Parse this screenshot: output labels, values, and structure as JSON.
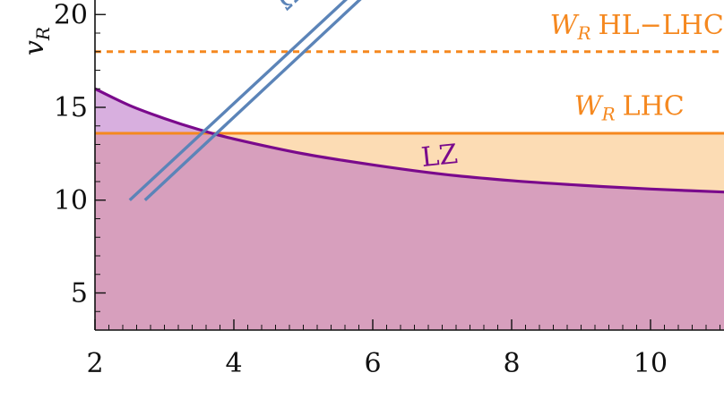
{
  "chart_data": {
    "type": "line",
    "title": "",
    "ylabel": "v",
    "ylabel_sub": "R",
    "xlabel": "",
    "xlim": [
      2,
      11.3
    ],
    "ylim": [
      3,
      20.5
    ],
    "x_ticks": [
      2,
      4,
      6,
      8,
      10
    ],
    "y_ticks": [
      5,
      10,
      15,
      20
    ],
    "series": [
      {
        "name": "LZ",
        "color": "#7a0a8c",
        "style": "solid",
        "x": [
          2,
          2.5,
          3,
          3.5,
          4,
          5,
          6,
          7,
          8,
          9,
          10,
          11.3
        ],
        "y": [
          16.0,
          15.1,
          14.4,
          13.8,
          13.3,
          12.5,
          11.9,
          11.4,
          11.05,
          10.8,
          10.6,
          10.4
        ]
      },
      {
        "name": "W_R LHC",
        "label": "LHC",
        "color": "#f5881f",
        "style": "solid",
        "x": [
          2,
          11.3
        ],
        "y": [
          13.6,
          13.6
        ]
      },
      {
        "name": "W_R HL-LHC",
        "label": "HL−LHC",
        "color": "#f5881f",
        "style": "dashed",
        "x": [
          2,
          11.3
        ],
        "y": [
          18.0,
          18.0
        ]
      },
      {
        "name": "Omega h^2 (a)",
        "label": "Ωh",
        "color": "#5b84b8",
        "style": "double",
        "x": [
          2.5,
          5.9
        ],
        "y": [
          10.0,
          21.8
        ]
      },
      {
        "name": "Omega h^2 (b)",
        "color": "#5b84b8",
        "style": "double",
        "x": [
          2.72,
          6.1
        ],
        "y": [
          10.0,
          21.8
        ]
      }
    ],
    "fills": [
      {
        "name": "LZ excluded",
        "color": "#b86ec4",
        "opacity": 0.55
      },
      {
        "name": "W_R LHC excluded",
        "color": "#fbc98c",
        "opacity": 0.65
      }
    ],
    "annotations": [
      {
        "text": "LZ",
        "x": 7.0,
        "y": 12.4,
        "color": "#7a0a8c"
      },
      {
        "text": "W",
        "sub": "R",
        "rest": "LHC",
        "x": 8.9,
        "y": 14.6,
        "color": "#f5881f"
      },
      {
        "text": "W",
        "sub": "R",
        "rest": "HL−LHC",
        "x": 8.55,
        "y": 18.95,
        "color": "#f5881f"
      },
      {
        "text": "Ωh",
        "x": 4.95,
        "y": 20.4,
        "color": "#5b84b8"
      }
    ]
  }
}
